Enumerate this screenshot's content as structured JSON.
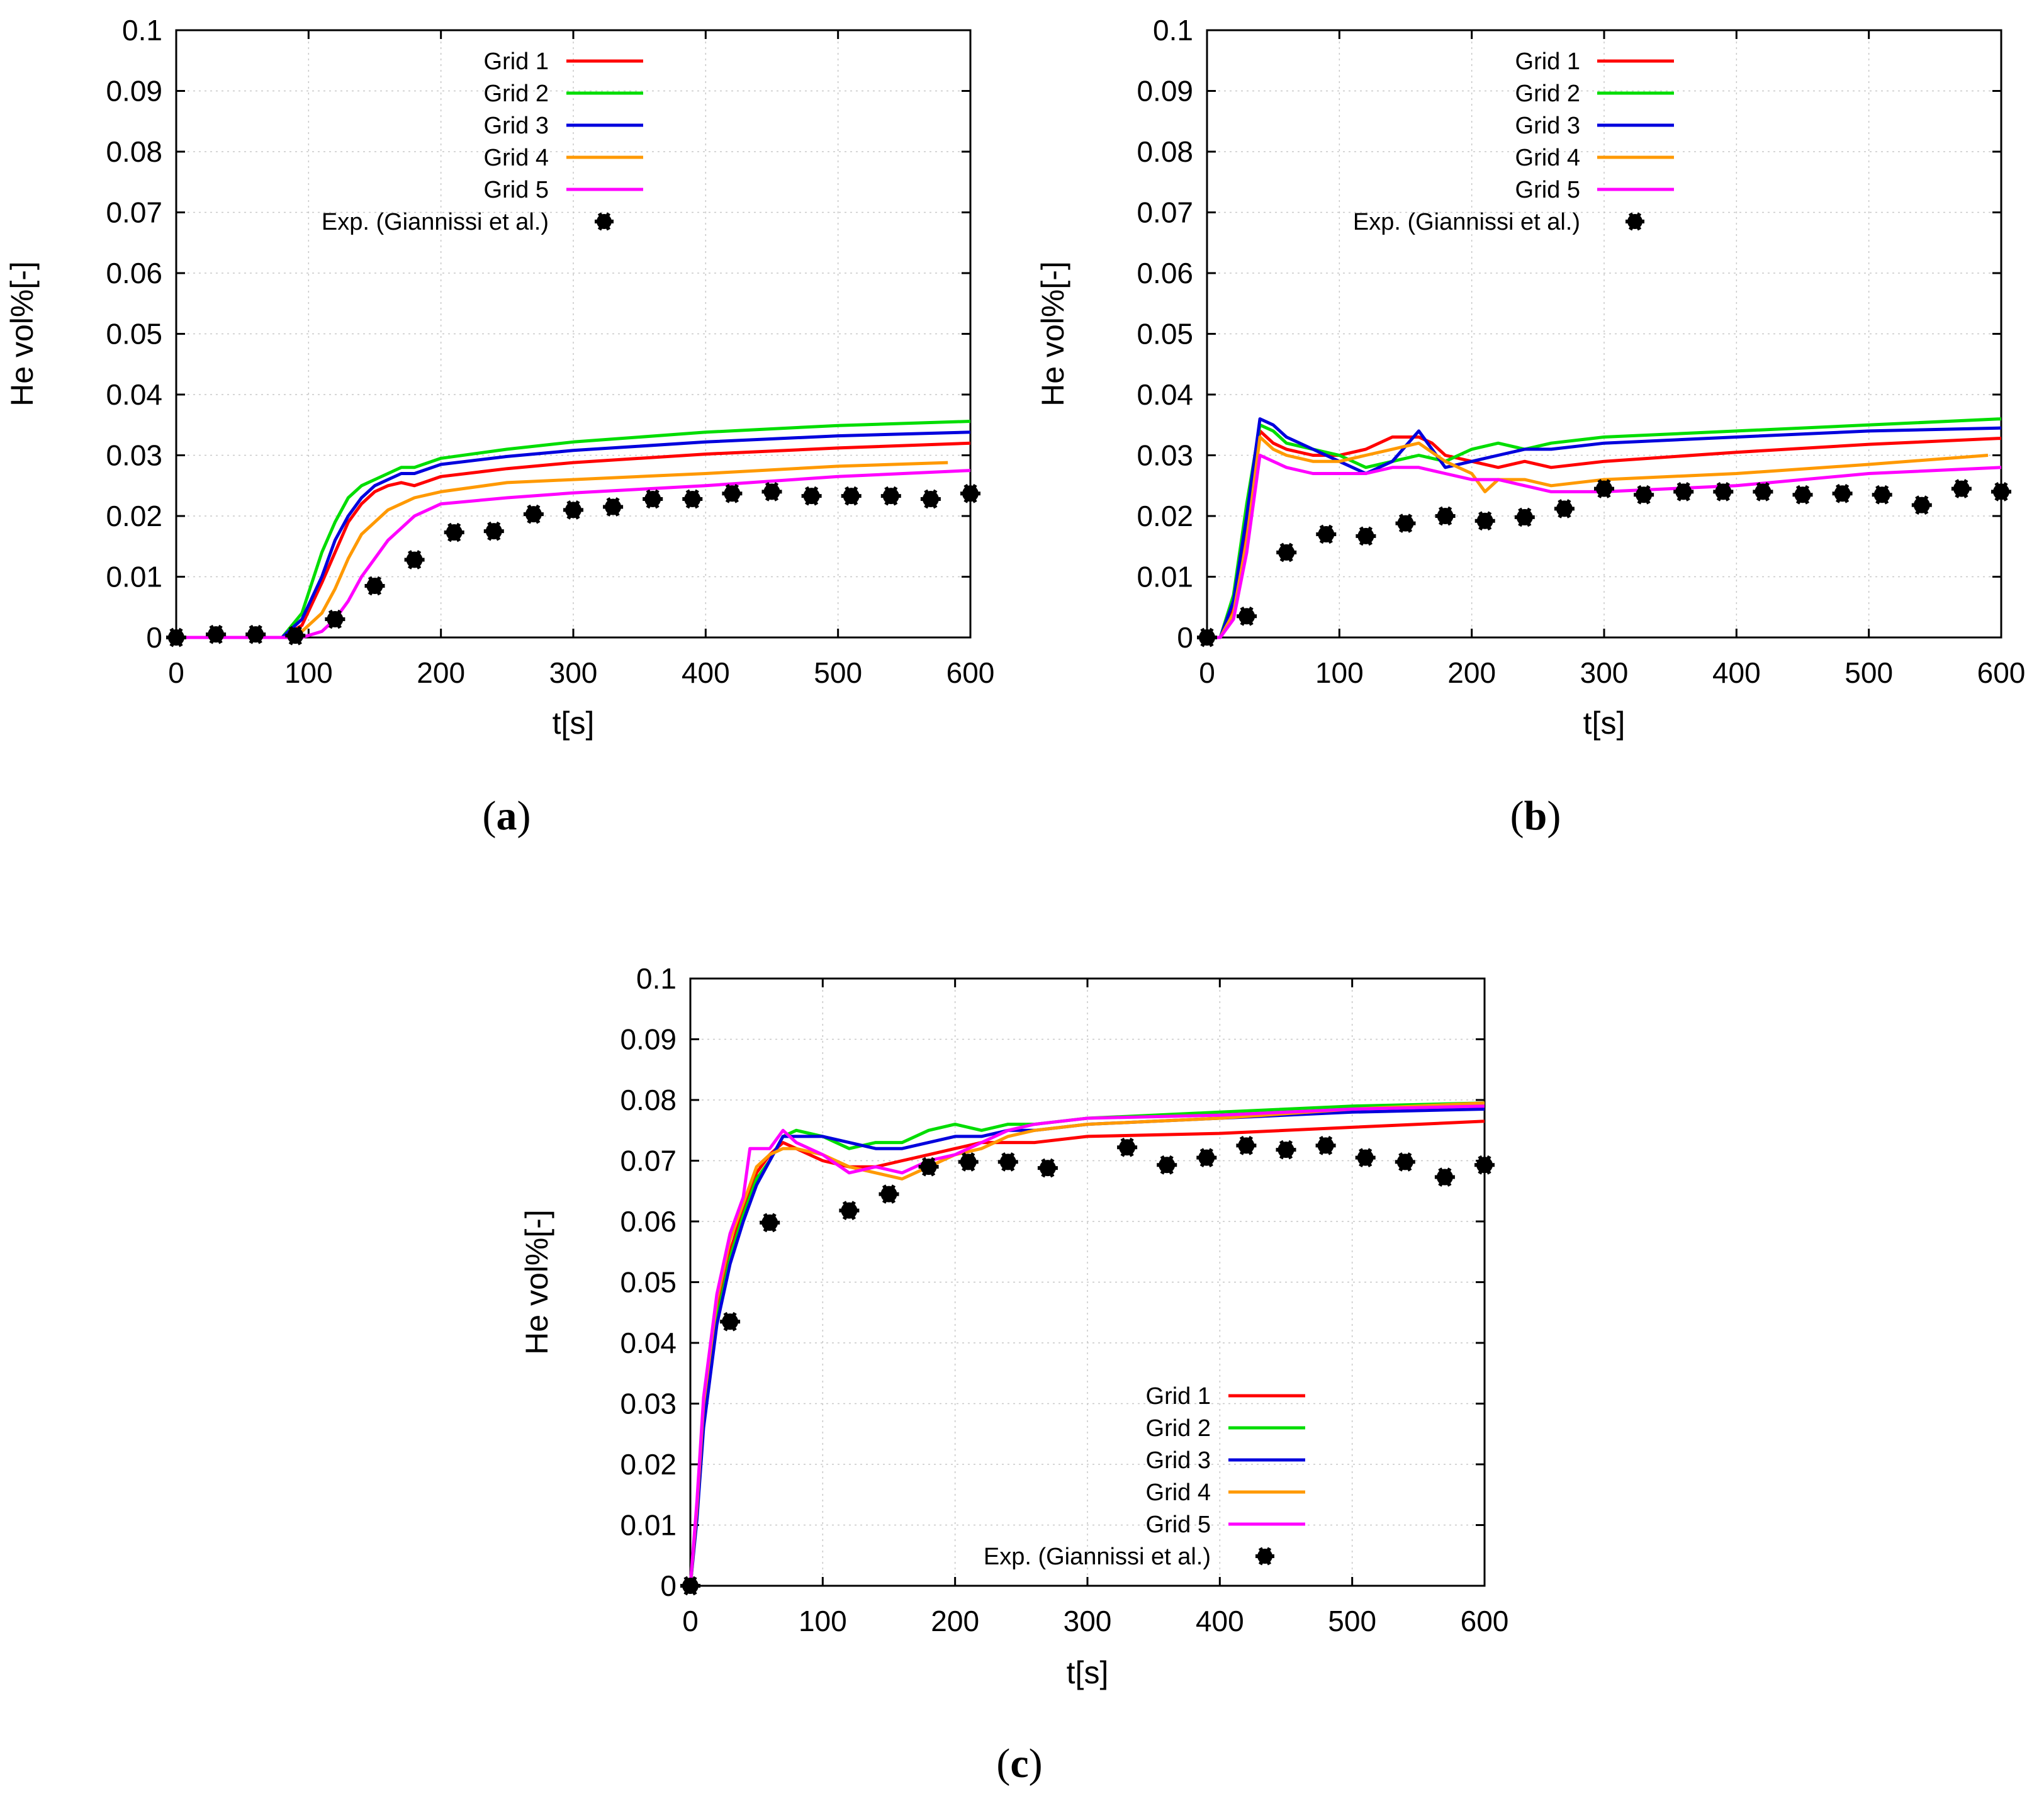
{
  "panels": [
    {
      "id": "a",
      "caption_letter": "a",
      "legend_position": "top-center"
    },
    {
      "id": "b",
      "caption_letter": "b",
      "legend_position": "top-center"
    },
    {
      "id": "c",
      "caption_letter": "c",
      "legend_position": "bottom-right"
    }
  ],
  "colors": {
    "Grid 1": "#ff0000",
    "Grid 2": "#00dd00",
    "Grid 3": "#0000dd",
    "Grid 4": "#ff9900",
    "Grid 5": "#ff00ff",
    "Exp": "#000000"
  },
  "chart_data": [
    {
      "type": "line",
      "panel": "a",
      "xlabel": "t[s]",
      "ylabel": "He vol%[-]",
      "xlim": [
        0,
        600
      ],
      "ylim": [
        0,
        0.1
      ],
      "xticks": [
        "0",
        "100",
        "200",
        "300",
        "400",
        "500",
        "600"
      ],
      "yticks": [
        "0",
        "0.01",
        "0.02",
        "0.03",
        "0.04",
        "0.05",
        "0.06",
        "0.07",
        "0.08",
        "0.09",
        "0.1"
      ],
      "grid": true,
      "series": [
        {
          "name": "Grid 1",
          "x": [
            0,
            80,
            95,
            110,
            120,
            130,
            140,
            150,
            160,
            170,
            180,
            200,
            250,
            300,
            400,
            500,
            600
          ],
          "y": [
            0,
            0,
            0.002,
            0.009,
            0.014,
            0.019,
            0.022,
            0.024,
            0.025,
            0.0255,
            0.025,
            0.0265,
            0.0278,
            0.0288,
            0.0302,
            0.0312,
            0.032
          ]
        },
        {
          "name": "Grid 2",
          "x": [
            0,
            80,
            95,
            110,
            120,
            130,
            140,
            150,
            160,
            170,
            180,
            200,
            250,
            300,
            400,
            500,
            600
          ],
          "y": [
            0,
            0,
            0.004,
            0.014,
            0.019,
            0.023,
            0.025,
            0.026,
            0.027,
            0.028,
            0.028,
            0.0295,
            0.031,
            0.0322,
            0.0338,
            0.0349,
            0.0356
          ]
        },
        {
          "name": "Grid 3",
          "x": [
            0,
            80,
            95,
            110,
            120,
            130,
            140,
            150,
            160,
            170,
            180,
            200,
            250,
            300,
            400,
            500,
            600
          ],
          "y": [
            0,
            0,
            0.003,
            0.01,
            0.016,
            0.02,
            0.023,
            0.025,
            0.026,
            0.027,
            0.027,
            0.0285,
            0.0298,
            0.0308,
            0.0322,
            0.0332,
            0.0338
          ]
        },
        {
          "name": "Grid 4",
          "x": [
            0,
            90,
            110,
            120,
            130,
            140,
            150,
            160,
            170,
            180,
            200,
            250,
            300,
            400,
            500,
            583
          ],
          "y": [
            0,
            0,
            0.004,
            0.008,
            0.013,
            0.017,
            0.019,
            0.021,
            0.022,
            0.023,
            0.024,
            0.0255,
            0.026,
            0.027,
            0.0282,
            0.0288
          ]
        },
        {
          "name": "Grid 5",
          "x": [
            0,
            95,
            110,
            120,
            130,
            140,
            150,
            160,
            170,
            180,
            200,
            250,
            300,
            400,
            500,
            600
          ],
          "y": [
            0,
            0,
            0.001,
            0.003,
            0.006,
            0.01,
            0.013,
            0.016,
            0.018,
            0.02,
            0.022,
            0.023,
            0.0238,
            0.025,
            0.0265,
            0.0275
          ]
        }
      ],
      "scatter": {
        "name": "Exp. (Giannissi et al.)",
        "x": [
          0,
          30,
          60,
          90,
          120,
          150,
          180,
          210,
          240,
          270,
          300,
          330,
          360,
          390,
          420,
          450,
          480,
          510,
          540,
          570,
          600
        ],
        "y": [
          0,
          0.0005,
          0.0005,
          0.0003,
          0.003,
          0.0085,
          0.0128,
          0.0173,
          0.0175,
          0.0203,
          0.021,
          0.0215,
          0.0228,
          0.0228,
          0.0237,
          0.024,
          0.0233,
          0.0233,
          0.0233,
          0.0228,
          0.0237
        ]
      },
      "legend_labels": [
        "Grid 1",
        "Grid 2",
        "Grid 3",
        "Grid 4",
        "Grid 5",
        "Exp. (Giannissi et al.)"
      ]
    },
    {
      "type": "line",
      "panel": "b",
      "xlabel": "t[s]",
      "ylabel": "He vol%[-]",
      "xlim": [
        0,
        600
      ],
      "ylim": [
        0,
        0.1
      ],
      "xticks": [
        "0",
        "100",
        "200",
        "300",
        "400",
        "500",
        "600"
      ],
      "yticks": [
        "0",
        "0.01",
        "0.02",
        "0.03",
        "0.04",
        "0.05",
        "0.06",
        "0.07",
        "0.08",
        "0.09",
        "0.1"
      ],
      "grid": true,
      "series": [
        {
          "name": "Grid 1",
          "x": [
            0,
            10,
            20,
            30,
            40,
            50,
            60,
            80,
            100,
            120,
            140,
            160,
            170,
            180,
            200,
            220,
            240,
            260,
            300,
            400,
            500,
            600
          ],
          "y": [
            0,
            0,
            0.005,
            0.018,
            0.034,
            0.032,
            0.031,
            0.03,
            0.03,
            0.031,
            0.033,
            0.033,
            0.032,
            0.03,
            0.029,
            0.028,
            0.029,
            0.028,
            0.029,
            0.0305,
            0.0318,
            0.0328
          ]
        },
        {
          "name": "Grid 2",
          "x": [
            0,
            10,
            20,
            30,
            40,
            50,
            60,
            80,
            100,
            120,
            140,
            160,
            180,
            200,
            220,
            240,
            260,
            300,
            400,
            500,
            600
          ],
          "y": [
            0,
            0,
            0.007,
            0.022,
            0.035,
            0.034,
            0.032,
            0.031,
            0.03,
            0.028,
            0.029,
            0.03,
            0.029,
            0.031,
            0.032,
            0.031,
            0.032,
            0.033,
            0.034,
            0.035,
            0.036
          ]
        },
        {
          "name": "Grid 3",
          "x": [
            0,
            10,
            20,
            30,
            40,
            50,
            60,
            80,
            100,
            120,
            140,
            160,
            170,
            180,
            200,
            220,
            240,
            260,
            300,
            400,
            500,
            600
          ],
          "y": [
            0,
            0,
            0.006,
            0.02,
            0.036,
            0.035,
            0.033,
            0.031,
            0.029,
            0.027,
            0.029,
            0.034,
            0.031,
            0.028,
            0.029,
            0.03,
            0.031,
            0.031,
            0.032,
            0.033,
            0.034,
            0.0345
          ]
        },
        {
          "name": "Grid 4",
          "x": [
            0,
            10,
            20,
            30,
            40,
            50,
            60,
            80,
            100,
            120,
            140,
            160,
            180,
            200,
            210,
            220,
            240,
            260,
            300,
            400,
            500,
            590
          ],
          "y": [
            0,
            0,
            0.004,
            0.016,
            0.033,
            0.031,
            0.03,
            0.029,
            0.029,
            0.03,
            0.031,
            0.032,
            0.029,
            0.027,
            0.024,
            0.026,
            0.026,
            0.025,
            0.026,
            0.027,
            0.0285,
            0.03
          ]
        },
        {
          "name": "Grid 5",
          "x": [
            0,
            10,
            20,
            30,
            40,
            50,
            60,
            80,
            100,
            120,
            140,
            160,
            180,
            200,
            220,
            240,
            260,
            300,
            400,
            500,
            600
          ],
          "y": [
            0,
            0,
            0.003,
            0.014,
            0.03,
            0.029,
            0.028,
            0.027,
            0.027,
            0.027,
            0.028,
            0.028,
            0.027,
            0.026,
            0.026,
            0.025,
            0.024,
            0.024,
            0.025,
            0.027,
            0.028
          ]
        }
      ],
      "scatter": {
        "name": "Exp. (Giannissi et al.)",
        "x": [
          0,
          30,
          60,
          90,
          120,
          150,
          180,
          210,
          240,
          270,
          300,
          330,
          360,
          390,
          420,
          450,
          480,
          510,
          540,
          570,
          600
        ],
        "y": [
          0,
          0.0035,
          0.014,
          0.017,
          0.0167,
          0.0188,
          0.02,
          0.0192,
          0.0198,
          0.0212,
          0.0245,
          0.0235,
          0.024,
          0.024,
          0.024,
          0.0235,
          0.0237,
          0.0235,
          0.0218,
          0.0245,
          0.024
        ]
      },
      "legend_labels": [
        "Grid 1",
        "Grid 2",
        "Grid 3",
        "Grid 4",
        "Grid 5",
        "Exp. (Giannissi et al.)"
      ]
    },
    {
      "type": "line",
      "panel": "c",
      "xlabel": "t[s]",
      "ylabel": "He vol%[-]",
      "xlim": [
        0,
        600
      ],
      "ylim": [
        0,
        0.1
      ],
      "xticks": [
        "0",
        "100",
        "200",
        "300",
        "400",
        "500",
        "600"
      ],
      "yticks": [
        "0",
        "0.01",
        "0.02",
        "0.03",
        "0.04",
        "0.05",
        "0.06",
        "0.07",
        "0.08",
        "0.09",
        "0.1"
      ],
      "grid": true,
      "series": [
        {
          "name": "Grid 1",
          "x": [
            0,
            5,
            10,
            20,
            30,
            40,
            50,
            60,
            70,
            80,
            100,
            120,
            140,
            160,
            180,
            200,
            220,
            240,
            260,
            300,
            400,
            500,
            600
          ],
          "y": [
            0,
            0.012,
            0.028,
            0.045,
            0.055,
            0.062,
            0.068,
            0.071,
            0.073,
            0.072,
            0.07,
            0.069,
            0.069,
            0.07,
            0.071,
            0.072,
            0.073,
            0.073,
            0.073,
            0.074,
            0.0745,
            0.0755,
            0.0765
          ]
        },
        {
          "name": "Grid 2",
          "x": [
            0,
            5,
            10,
            20,
            30,
            40,
            50,
            60,
            70,
            80,
            100,
            120,
            140,
            160,
            180,
            200,
            220,
            240,
            260,
            300,
            400,
            500,
            600
          ],
          "y": [
            0,
            0.012,
            0.027,
            0.044,
            0.054,
            0.061,
            0.067,
            0.07,
            0.074,
            0.075,
            0.074,
            0.072,
            0.073,
            0.073,
            0.075,
            0.076,
            0.075,
            0.076,
            0.076,
            0.077,
            0.078,
            0.079,
            0.0795
          ]
        },
        {
          "name": "Grid 3",
          "x": [
            0,
            5,
            10,
            20,
            30,
            40,
            50,
            60,
            70,
            80,
            100,
            120,
            140,
            160,
            180,
            200,
            220,
            240,
            260,
            300,
            400,
            500,
            600
          ],
          "y": [
            0,
            0.011,
            0.026,
            0.043,
            0.053,
            0.06,
            0.066,
            0.07,
            0.074,
            0.074,
            0.074,
            0.073,
            0.072,
            0.072,
            0.073,
            0.074,
            0.074,
            0.075,
            0.075,
            0.076,
            0.077,
            0.078,
            0.0785
          ]
        },
        {
          "name": "Grid 4",
          "x": [
            0,
            5,
            10,
            20,
            30,
            40,
            50,
            60,
            70,
            80,
            100,
            120,
            140,
            160,
            180,
            200,
            220,
            240,
            260,
            300,
            400,
            500,
            600
          ],
          "y": [
            0,
            0.013,
            0.03,
            0.047,
            0.057,
            0.063,
            0.069,
            0.071,
            0.072,
            0.072,
            0.071,
            0.069,
            0.068,
            0.067,
            0.069,
            0.071,
            0.072,
            0.074,
            0.075,
            0.076,
            0.077,
            0.0785,
            0.0795
          ]
        },
        {
          "name": "Grid 5",
          "x": [
            0,
            5,
            10,
            20,
            30,
            40,
            45,
            60,
            70,
            80,
            100,
            120,
            140,
            160,
            180,
            200,
            220,
            240,
            260,
            300,
            400,
            500,
            600
          ],
          "y": [
            0,
            0.014,
            0.031,
            0.048,
            0.058,
            0.064,
            0.072,
            0.072,
            0.075,
            0.073,
            0.071,
            0.068,
            0.069,
            0.068,
            0.07,
            0.071,
            0.073,
            0.075,
            0.076,
            0.077,
            0.0775,
            0.0785,
            0.079
          ]
        }
      ],
      "scatter": {
        "name": "Exp. (Giannissi et al.)",
        "x": [
          0,
          30,
          60,
          120,
          150,
          180,
          210,
          240,
          270,
          330,
          360,
          390,
          420,
          450,
          480,
          510,
          540,
          570,
          600
        ],
        "y": [
          0,
          0.0435,
          0.0598,
          0.0618,
          0.0645,
          0.069,
          0.0698,
          0.0698,
          0.0688,
          0.0722,
          0.0693,
          0.0705,
          0.0725,
          0.0718,
          0.0725,
          0.0705,
          0.0698,
          0.0673,
          0.0693
        ]
      },
      "legend_labels": [
        "Grid 1",
        "Grid 2",
        "Grid 3",
        "Grid 4",
        "Grid 5",
        "Exp. (Giannissi et al.)"
      ]
    }
  ]
}
